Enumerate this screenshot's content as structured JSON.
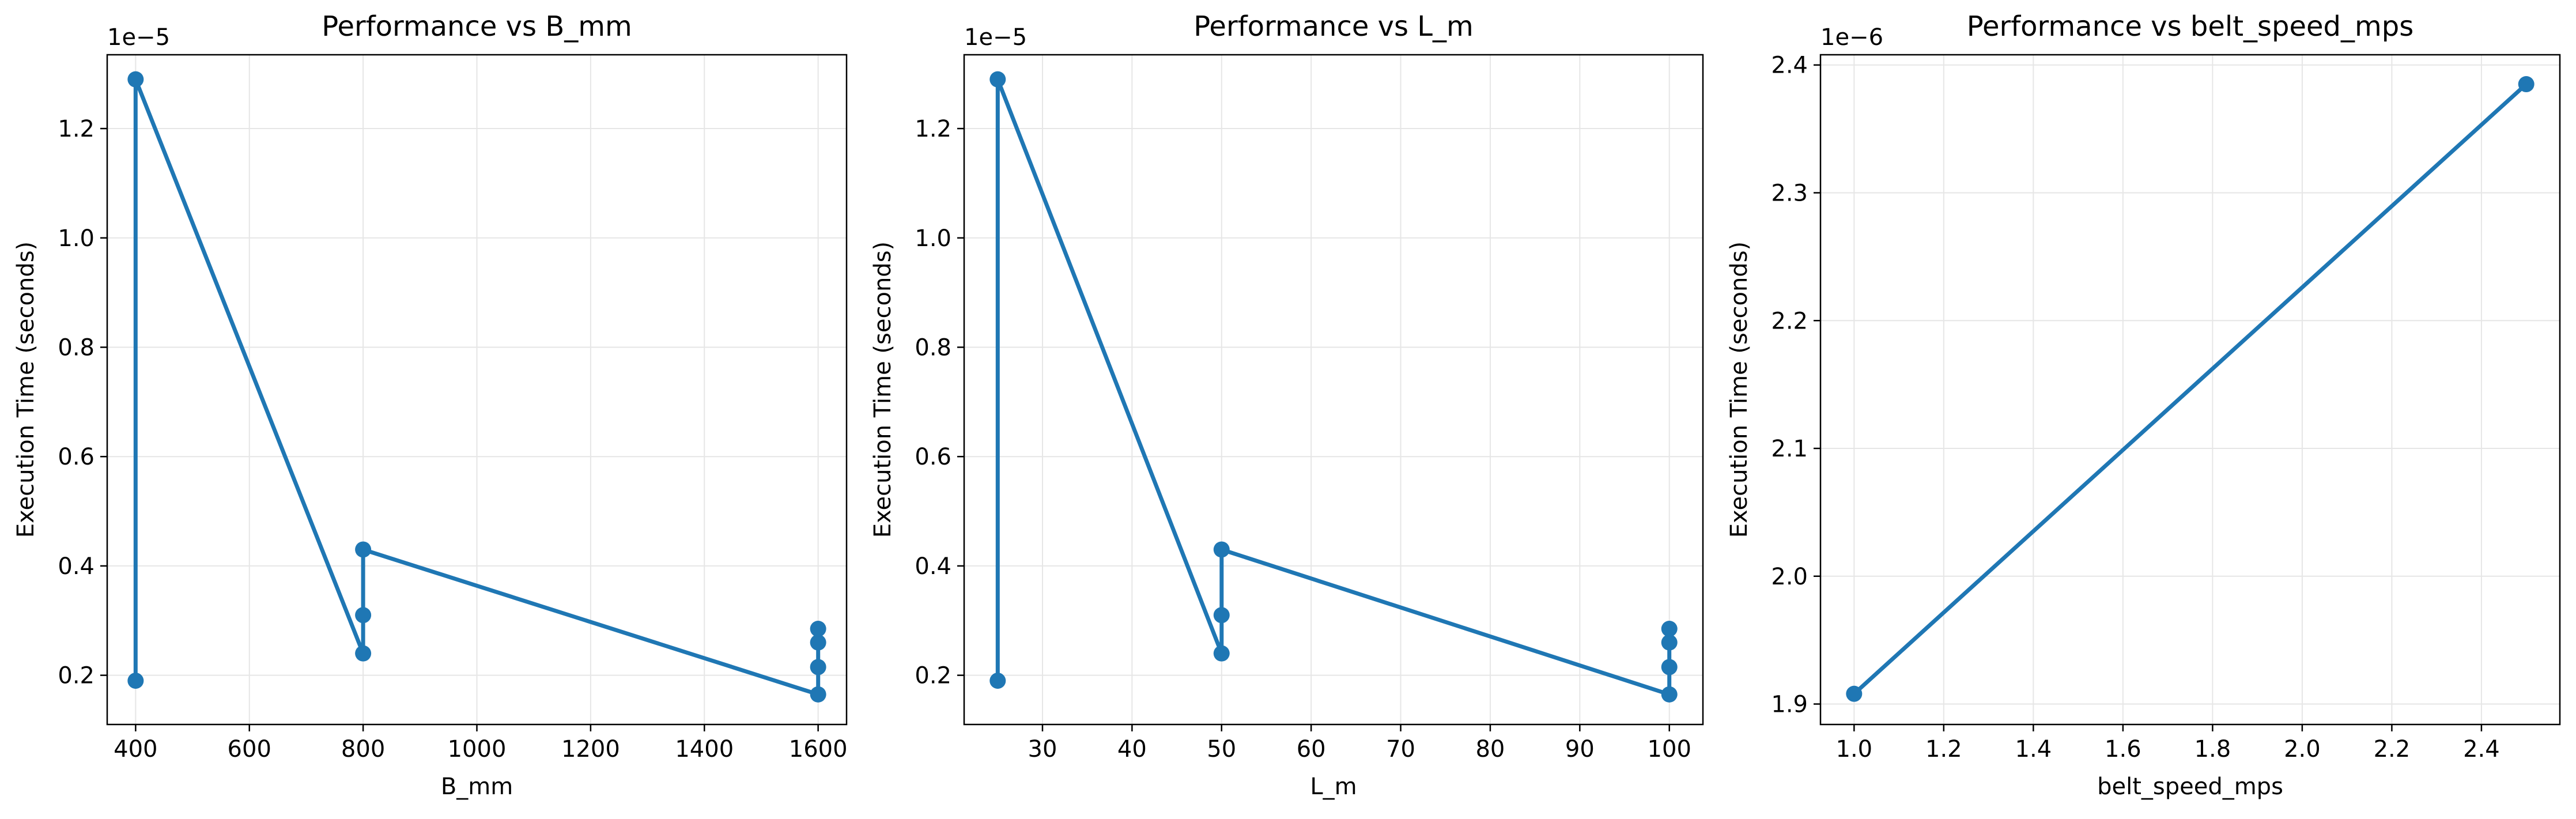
{
  "figure": {
    "background": "#ffffff",
    "series_color": "#1f77b4",
    "grid_color": "#e6e6e6"
  },
  "chart_data": [
    {
      "type": "line",
      "title": "Performance vs B_mm",
      "xlabel": "B_mm",
      "ylabel": "Execution Time (seconds)",
      "offset_label": "1e−5",
      "y_scale_factor": 1e-05,
      "xlim": [
        350,
        1650
      ],
      "ylim": [
        0.11,
        1.335
      ],
      "xticks": [
        400,
        600,
        800,
        1000,
        1200,
        1400,
        1600
      ],
      "xtick_labels": [
        "400",
        "600",
        "800",
        "1000",
        "1200",
        "1400",
        "1600"
      ],
      "yticks": [
        0.2,
        0.4,
        0.6,
        0.8,
        1.0,
        1.2
      ],
      "ytick_labels": [
        "0.2",
        "0.4",
        "0.6",
        "0.8",
        "1.0",
        "1.2"
      ],
      "grid": true,
      "series": [
        {
          "x": [
            400,
            400,
            800,
            800,
            800,
            1600,
            1600,
            1600,
            1600
          ],
          "y": [
            0.19,
            1.29,
            0.24,
            0.31,
            0.43,
            0.165,
            0.215,
            0.26,
            0.285
          ]
        }
      ]
    },
    {
      "type": "line",
      "title": "Performance vs L_m",
      "xlabel": "L_m",
      "ylabel": "Execution Time (seconds)",
      "offset_label": "1e−5",
      "y_scale_factor": 1e-05,
      "xlim": [
        21.25,
        103.75
      ],
      "ylim": [
        0.11,
        1.335
      ],
      "xticks": [
        30,
        40,
        50,
        60,
        70,
        80,
        90,
        100
      ],
      "xtick_labels": [
        "30",
        "40",
        "50",
        "60",
        "70",
        "80",
        "90",
        "100"
      ],
      "yticks": [
        0.2,
        0.4,
        0.6,
        0.8,
        1.0,
        1.2
      ],
      "ytick_labels": [
        "0.2",
        "0.4",
        "0.6",
        "0.8",
        "1.0",
        "1.2"
      ],
      "grid": true,
      "series": [
        {
          "x": [
            25,
            25,
            50,
            50,
            50,
            100,
            100,
            100,
            100
          ],
          "y": [
            0.19,
            1.29,
            0.24,
            0.31,
            0.43,
            0.165,
            0.215,
            0.26,
            0.285
          ]
        }
      ]
    },
    {
      "type": "line",
      "title": "Performance vs belt_speed_mps",
      "xlabel": "belt_speed_mps",
      "ylabel": "Execution Time (seconds)",
      "offset_label": "1e−6",
      "y_scale_factor": 1e-06,
      "xlim": [
        0.925,
        2.575
      ],
      "ylim": [
        1.884,
        2.408
      ],
      "xticks": [
        1.0,
        1.2,
        1.4,
        1.6,
        1.8,
        2.0,
        2.2,
        2.4
      ],
      "xtick_labels": [
        "1.0",
        "1.2",
        "1.4",
        "1.6",
        "1.8",
        "2.0",
        "2.2",
        "2.4"
      ],
      "yticks": [
        1.9,
        2.0,
        2.1,
        2.2,
        2.3,
        2.4
      ],
      "ytick_labels": [
        "1.9",
        "2.0",
        "2.1",
        "2.2",
        "2.3",
        "2.4"
      ],
      "grid": true,
      "series": [
        {
          "x": [
            1.0,
            2.5
          ],
          "y": [
            1.908,
            2.385
          ]
        }
      ]
    }
  ]
}
